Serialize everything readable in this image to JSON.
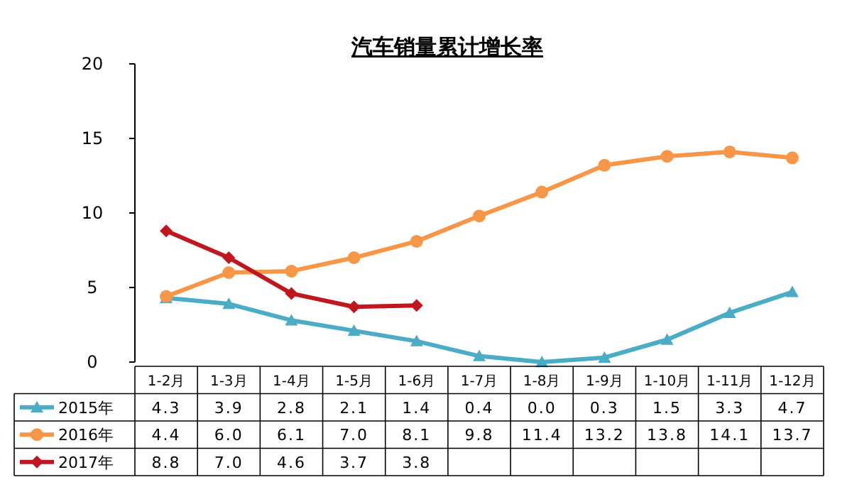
{
  "chart_data": {
    "type": "line",
    "title": "汽车销量累计增长率",
    "categories": [
      "1-2月",
      "1-3月",
      "1-4月",
      "1-5月",
      "1-6月",
      "1-7月",
      "1-8月",
      "1-9月",
      "1-10月",
      "1-11月",
      "1-12月"
    ],
    "series": [
      {
        "name": "2015年",
        "color": "#4bacc6",
        "marker": "triangle",
        "values": [
          4.3,
          3.9,
          2.8,
          2.1,
          1.4,
          0.4,
          0.0,
          0.3,
          1.5,
          3.3,
          4.7
        ],
        "value_labels": [
          "4.3",
          "3.9",
          "2.8",
          "2.1",
          "1.4",
          "0.4",
          "0.0",
          "0.3",
          "1.5",
          "3.3",
          "4.7"
        ]
      },
      {
        "name": "2016年",
        "color": "#f79646",
        "marker": "circle",
        "values": [
          4.4,
          6.0,
          6.1,
          7.0,
          8.1,
          9.8,
          11.4,
          13.2,
          13.8,
          14.1,
          13.7
        ],
        "value_labels": [
          "4.4",
          "6.0",
          "6.1",
          "7.0",
          "8.1",
          "9.8",
          "11.4",
          "13.2",
          "13.8",
          "14.1",
          "13.7"
        ]
      },
      {
        "name": "2017年",
        "color": "#c0171e",
        "marker": "diamond",
        "values": [
          8.8,
          7.0,
          4.6,
          3.7,
          3.8,
          null,
          null,
          null,
          null,
          null,
          null
        ],
        "value_labels": [
          "8.8",
          "7.0",
          "4.6",
          "3.7",
          "3.8",
          null,
          null,
          null,
          null,
          null,
          null
        ]
      }
    ],
    "ylim": [
      0,
      20
    ],
    "yticks": [
      0,
      5,
      10,
      15,
      20
    ],
    "grid": false,
    "legend": "bottom",
    "line_style": "solid"
  }
}
